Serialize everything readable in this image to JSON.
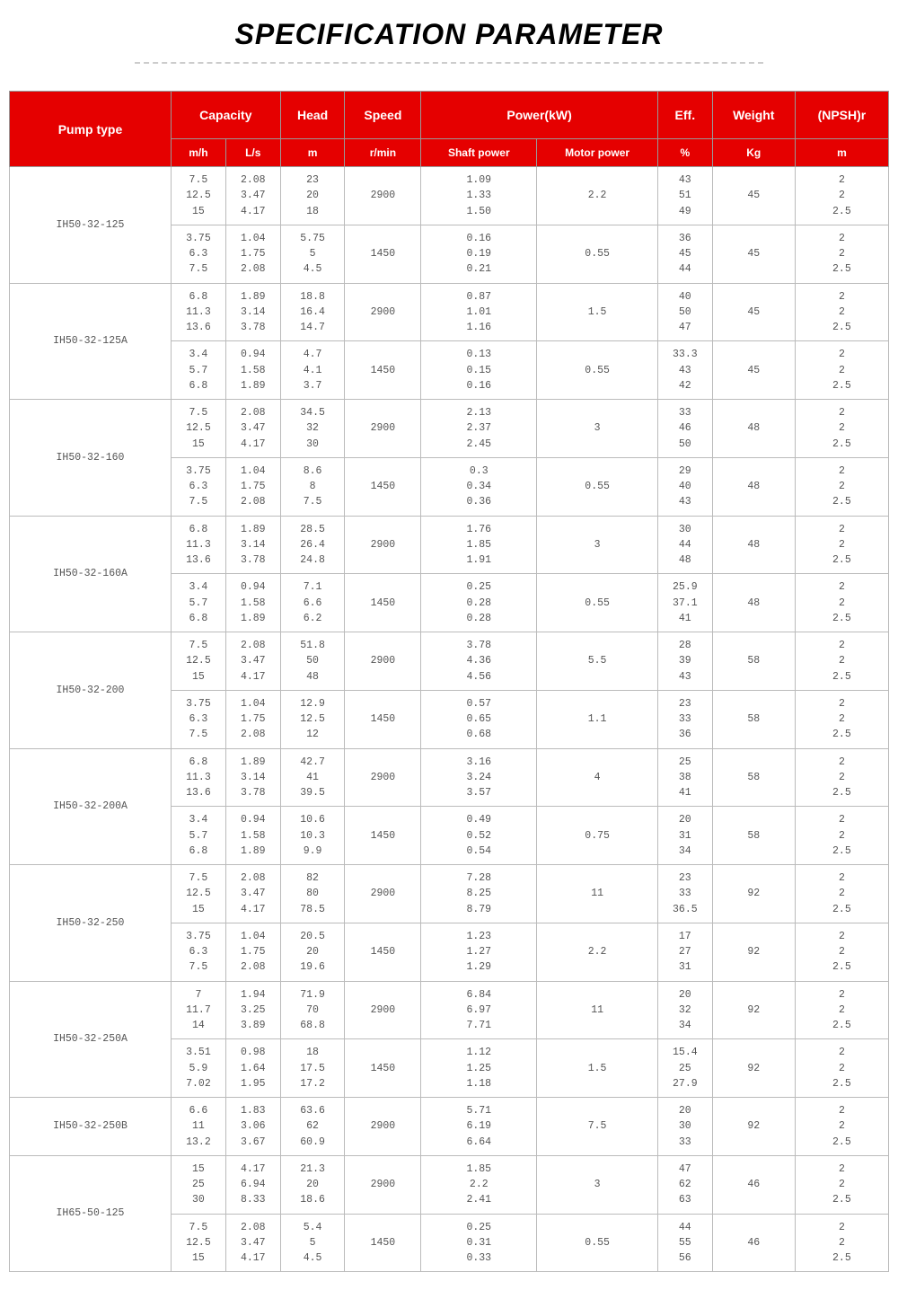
{
  "title": "SPECIFICATION PARAMETER",
  "headers": {
    "pump_type": "Pump type",
    "capacity": "Capacity",
    "capacity_mh": "m/h",
    "capacity_ls": "L/s",
    "head": "Head",
    "head_unit": "m",
    "speed": "Speed",
    "speed_unit": "r/min",
    "power": "Power(kW)",
    "shaft_power": "Shaft power",
    "motor_power": "Motor power",
    "eff": "Eff.",
    "eff_unit": "%",
    "weight": "Weight",
    "weight_unit": "Kg",
    "npshr": "(NPSH)r",
    "npshr_unit": "m"
  },
  "colors": {
    "header_bg": "#e50000",
    "header_text": "#ffffff",
    "cell_text": "#555555",
    "border": "#bbbbbb",
    "group_border": "#888888",
    "background": "#ffffff",
    "title_color": "#000000",
    "dash_color": "#cccccc"
  },
  "fonts": {
    "title_size": 32,
    "header_size": 14,
    "subheader_size": 12,
    "cell_size": 11.5,
    "data_family": "Courier New"
  },
  "pumps": [
    {
      "name": "IH50-32-125",
      "rows": [
        {
          "mh": "7.5\n12.5\n15",
          "ls": "2.08\n3.47\n4.17",
          "head": "23\n20\n18",
          "speed": "2900",
          "sp": "1.09\n1.33\n1.50",
          "mp": "2.2",
          "eff": "43\n51\n49",
          "wt": "45",
          "np": "2\n2\n2.5"
        },
        {
          "mh": "3.75\n6.3\n7.5",
          "ls": "1.04\n1.75\n2.08",
          "head": "5.75\n5\n4.5",
          "speed": "1450",
          "sp": "0.16\n0.19\n0.21",
          "mp": "0.55",
          "eff": "36\n45\n44",
          "wt": "45",
          "np": "2\n2\n2.5"
        }
      ]
    },
    {
      "name": "IH50-32-125A",
      "rows": [
        {
          "mh": "6.8\n11.3\n13.6",
          "ls": "1.89\n3.14\n3.78",
          "head": "18.8\n16.4\n14.7",
          "speed": "2900",
          "sp": "0.87\n1.01\n1.16",
          "mp": "1.5",
          "eff": "40\n50\n47",
          "wt": "45",
          "np": "2\n2\n2.5"
        },
        {
          "mh": "3.4\n5.7\n6.8",
          "ls": "0.94\n1.58\n1.89",
          "head": "4.7\n4.1\n3.7",
          "speed": "1450",
          "sp": "0.13\n0.15\n0.16",
          "mp": "0.55",
          "eff": "33.3\n43\n42",
          "wt": "45",
          "np": "2\n2\n2.5"
        }
      ]
    },
    {
      "name": "IH50-32-160",
      "rows": [
        {
          "mh": "7.5\n12.5\n15",
          "ls": "2.08\n3.47\n4.17",
          "head": "34.5\n32\n30",
          "speed": "2900",
          "sp": "2.13\n2.37\n2.45",
          "mp": "3",
          "eff": "33\n46\n50",
          "wt": "48",
          "np": "2\n2\n2.5"
        },
        {
          "mh": "3.75\n6.3\n7.5",
          "ls": "1.04\n1.75\n2.08",
          "head": "8.6\n8\n7.5",
          "speed": "1450",
          "sp": "0.3\n0.34\n0.36",
          "mp": "0.55",
          "eff": "29\n40\n43",
          "wt": "48",
          "np": "2\n2\n2.5"
        }
      ]
    },
    {
      "name": "IH50-32-160A",
      "rows": [
        {
          "mh": "6.8\n11.3\n13.6",
          "ls": "1.89\n3.14\n3.78",
          "head": "28.5\n26.4\n24.8",
          "speed": "2900",
          "sp": "1.76\n1.85\n1.91",
          "mp": "3",
          "eff": "30\n44\n48",
          "wt": "48",
          "np": "2\n2\n2.5"
        },
        {
          "mh": "3.4\n5.7\n6.8",
          "ls": "0.94\n1.58\n1.89",
          "head": "7.1\n6.6\n6.2",
          "speed": "1450",
          "sp": "0.25\n0.28\n0.28",
          "mp": "0.55",
          "eff": "25.9\n37.1\n41",
          "wt": "48",
          "np": "2\n2\n2.5"
        }
      ]
    },
    {
      "name": "IH50-32-200",
      "rows": [
        {
          "mh": "7.5\n12.5\n15",
          "ls": "2.08\n3.47\n4.17",
          "head": "51.8\n50\n48",
          "speed": "2900",
          "sp": "3.78\n4.36\n4.56",
          "mp": "5.5",
          "eff": "28\n39\n43",
          "wt": "58",
          "np": "2\n2\n2.5"
        },
        {
          "mh": "3.75\n6.3\n7.5",
          "ls": "1.04\n1.75\n2.08",
          "head": "12.9\n12.5\n12",
          "speed": "1450",
          "sp": "0.57\n0.65\n0.68",
          "mp": "1.1",
          "eff": "23\n33\n36",
          "wt": "58",
          "np": "2\n2\n2.5"
        }
      ]
    },
    {
      "name": "IH50-32-200A",
      "rows": [
        {
          "mh": "6.8\n11.3\n13.6",
          "ls": "1.89\n3.14\n3.78",
          "head": "42.7\n41\n39.5",
          "speed": "2900",
          "sp": "3.16\n3.24\n3.57",
          "mp": "4",
          "eff": "25\n38\n41",
          "wt": "58",
          "np": "2\n2\n2.5"
        },
        {
          "mh": "3.4\n5.7\n6.8",
          "ls": "0.94\n1.58\n1.89",
          "head": "10.6\n10.3\n9.9",
          "speed": "1450",
          "sp": "0.49\n0.52\n0.54",
          "mp": "0.75",
          "eff": "20\n31\n34",
          "wt": "58",
          "np": "2\n2\n2.5"
        }
      ]
    },
    {
      "name": "IH50-32-250",
      "rows": [
        {
          "mh": "7.5\n12.5\n15",
          "ls": "2.08\n3.47\n4.17",
          "head": "82\n80\n78.5",
          "speed": "2900",
          "sp": "7.28\n8.25\n8.79",
          "mp": "11",
          "eff": "23\n33\n36.5",
          "wt": "92",
          "np": "2\n2\n2.5"
        },
        {
          "mh": "3.75\n6.3\n7.5",
          "ls": "1.04\n1.75\n2.08",
          "head": "20.5\n20\n19.6",
          "speed": "1450",
          "sp": "1.23\n1.27\n1.29",
          "mp": "2.2",
          "eff": "17\n27\n31",
          "wt": "92",
          "np": "2\n2\n2.5"
        }
      ]
    },
    {
      "name": "IH50-32-250A",
      "rows": [
        {
          "mh": "7\n11.7\n14",
          "ls": "1.94\n3.25\n3.89",
          "head": "71.9\n70\n68.8",
          "speed": "2900",
          "sp": "6.84\n6.97\n7.71",
          "mp": "11",
          "eff": "20\n32\n34",
          "wt": "92",
          "np": "2\n2\n2.5"
        },
        {
          "mh": "3.51\n5.9\n7.02",
          "ls": "0.98\n1.64\n1.95",
          "head": "18\n17.5\n17.2",
          "speed": "1450",
          "sp": "1.12\n1.25\n1.18",
          "mp": "1.5",
          "eff": "15.4\n25\n27.9",
          "wt": "92",
          "np": "2\n2\n2.5"
        }
      ]
    },
    {
      "name": "IH50-32-250B",
      "rows": [
        {
          "mh": "6.6\n11\n13.2",
          "ls": "1.83\n3.06\n3.67",
          "head": "63.6\n62\n60.9",
          "speed": "2900",
          "sp": "5.71\n6.19\n6.64",
          "mp": "7.5",
          "eff": "20\n30\n33",
          "wt": "92",
          "np": "2\n2\n2.5"
        }
      ]
    },
    {
      "name": "IH65-50-125",
      "rows": [
        {
          "mh": "15\n25\n30",
          "ls": "4.17\n6.94\n8.33",
          "head": "21.3\n20\n18.6",
          "speed": "2900",
          "sp": "1.85\n2.2\n2.41",
          "mp": "3",
          "eff": "47\n62\n63",
          "wt": "46",
          "np": "2\n2\n2.5"
        },
        {
          "mh": "7.5\n12.5\n15",
          "ls": "2.08\n3.47\n4.17",
          "head": "5.4\n5\n4.5",
          "speed": "1450",
          "sp": "0.25\n0.31\n0.33",
          "mp": "0.55",
          "eff": "44\n55\n56",
          "wt": "46",
          "np": "2\n2\n2.5"
        }
      ]
    }
  ]
}
